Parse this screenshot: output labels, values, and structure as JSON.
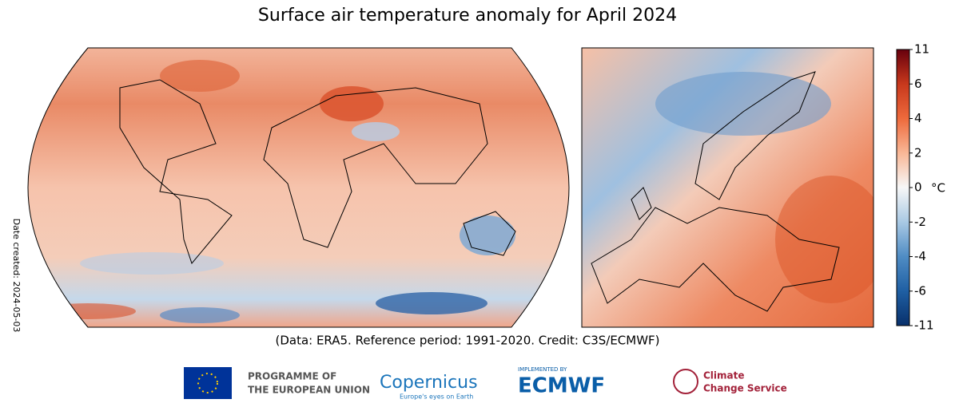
{
  "title": "Surface air temperature anomaly for April 2024",
  "date_created": "Date created: 2024-05-03",
  "credit": "(Data: ERA5.  Reference period: 1991-2020.  Credit: C3S/ECMWF)",
  "colorbar": {
    "unit": "°C",
    "ticks": [
      11,
      6,
      4,
      2,
      0,
      -2,
      -4,
      -6,
      -11
    ],
    "colors": [
      "#67000d",
      "#c8381c",
      "#ee6a3c",
      "#f9b796",
      "#f7f7f7",
      "#a9c9e4",
      "#4f8cc4",
      "#1f5fa3",
      "#08306b"
    ]
  },
  "logos": {
    "eu_line1": "PROGRAMME OF",
    "eu_line2": "THE EUROPEAN UNION",
    "copernicus": "Copernicus",
    "copernicus_tagline": "Europe's eyes on Earth",
    "ecmwf_top": "IMPLEMENTED BY",
    "ecmwf": "ECMWF",
    "c3s_line1": "Climate",
    "c3s_line2": "Change Service"
  }
}
